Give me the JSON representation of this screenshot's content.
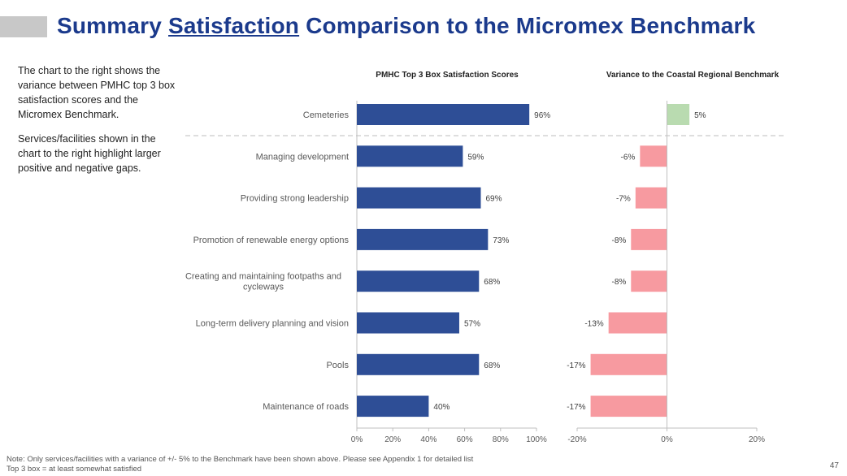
{
  "header": {
    "title_pre": "Summary ",
    "title_emph": "Satisfaction",
    "title_post": " Comparison to the Micromex Benchmark"
  },
  "intro": {
    "p1": "The chart to the right shows the variance between PMHC top 3 box satisfaction scores and the Micromex Benchmark.",
    "p2": "Services/facilities shown in the chart to the right highlight larger positive and negative gaps."
  },
  "chart_data": [
    {
      "type": "bar",
      "orientation": "horizontal",
      "title": "PMHC Top 3 Box Satisfaction Scores",
      "categories": [
        "Cemeteries",
        "Managing development",
        "Providing strong leadership",
        "Promotion of renewable energy options",
        "Creating and maintaining footpaths and cycleways",
        "Long-term delivery planning and vision",
        "Pools",
        "Maintenance of roads"
      ],
      "values": [
        96,
        59,
        69,
        73,
        68,
        57,
        68,
        40
      ],
      "value_labels": [
        "96%",
        "59%",
        "69%",
        "73%",
        "68%",
        "57%",
        "68%",
        "40%"
      ],
      "xlim": [
        0,
        100
      ],
      "xticks": [
        "0%",
        "20%",
        "40%",
        "60%",
        "80%",
        "100%"
      ],
      "bar_color": "#2e4e96",
      "grid": false
    },
    {
      "type": "bar",
      "orientation": "horizontal",
      "title": "Variance to the Coastal Regional Benchmark",
      "categories": [
        "Cemeteries",
        "Managing development",
        "Providing strong leadership",
        "Promotion of renewable energy options",
        "Creating and maintaining footpaths and cycleways",
        "Long-term delivery planning and vision",
        "Pools",
        "Maintenance of roads"
      ],
      "values": [
        5,
        -6,
        -7,
        -8,
        -8,
        -13,
        -17,
        -17
      ],
      "value_labels": [
        "5%",
        "-6%",
        "-7%",
        "-8%",
        "-8%",
        "-13%",
        "-17%",
        "-17%"
      ],
      "xlim": [
        -20,
        20
      ],
      "xticks": [
        "-20%",
        "0%",
        "20%"
      ],
      "positive_color": "#b9dbb0",
      "negative_color": "#f79aa0",
      "grid": false
    }
  ],
  "footer": {
    "note_line1": "Note: Only services/facilities with a variance of +/- 5% to the Benchmark have been shown above. Please see Appendix 1 for detailed list",
    "note_line2": "Top 3 box = at least somewhat satisfied",
    "page_number": "47"
  }
}
